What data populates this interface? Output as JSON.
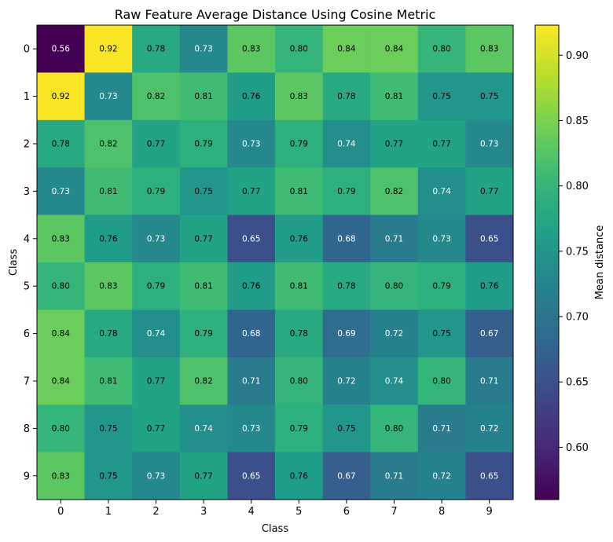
{
  "chart_data": {
    "type": "heatmap",
    "title": "Raw Feature Average Distance Using Cosine Metric",
    "xlabel": "Class",
    "ylabel": "Class",
    "x_categories": [
      "0",
      "1",
      "2",
      "3",
      "4",
      "5",
      "6",
      "7",
      "8",
      "9"
    ],
    "y_categories": [
      "0",
      "1",
      "2",
      "3",
      "4",
      "5",
      "6",
      "7",
      "8",
      "9"
    ],
    "values": [
      [
        0.56,
        0.92,
        0.78,
        0.73,
        0.83,
        0.8,
        0.84,
        0.84,
        0.8,
        0.83
      ],
      [
        0.92,
        0.73,
        0.82,
        0.81,
        0.76,
        0.83,
        0.78,
        0.81,
        0.75,
        0.75
      ],
      [
        0.78,
        0.82,
        0.77,
        0.79,
        0.73,
        0.79,
        0.74,
        0.77,
        0.77,
        0.73
      ],
      [
        0.73,
        0.81,
        0.79,
        0.75,
        0.77,
        0.81,
        0.79,
        0.82,
        0.74,
        0.77
      ],
      [
        0.83,
        0.76,
        0.73,
        0.77,
        0.65,
        0.76,
        0.68,
        0.71,
        0.73,
        0.65
      ],
      [
        0.8,
        0.83,
        0.79,
        0.81,
        0.76,
        0.81,
        0.78,
        0.8,
        0.79,
        0.76
      ],
      [
        0.84,
        0.78,
        0.74,
        0.79,
        0.68,
        0.78,
        0.69,
        0.72,
        0.75,
        0.67
      ],
      [
        0.84,
        0.81,
        0.77,
        0.82,
        0.71,
        0.8,
        0.72,
        0.74,
        0.8,
        0.71
      ],
      [
        0.8,
        0.75,
        0.77,
        0.74,
        0.73,
        0.79,
        0.75,
        0.8,
        0.71,
        0.72
      ],
      [
        0.83,
        0.75,
        0.73,
        0.77,
        0.65,
        0.76,
        0.67,
        0.71,
        0.72,
        0.65
      ]
    ],
    "colormap": "viridis",
    "value_range": [
      0.56,
      0.923
    ],
    "colorbar": {
      "label": "Mean distance",
      "ticks": [
        0.6,
        0.65,
        0.7,
        0.75,
        0.8,
        0.85,
        0.9
      ],
      "tick_labels": [
        "0.60",
        "0.65",
        "0.70",
        "0.75",
        "0.80",
        "0.85",
        "0.90"
      ]
    },
    "grid": false
  }
}
